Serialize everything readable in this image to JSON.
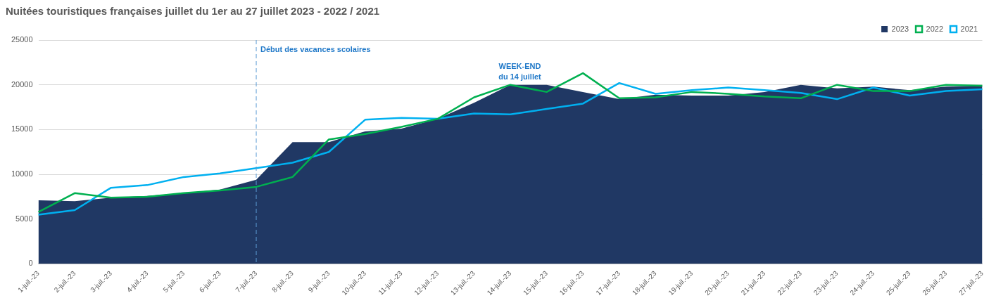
{
  "chart_data": {
    "type": "line",
    "title": "Nuitées touristiques françaises juillet du 1er au 27 juillet 2023 - 2022 / 2021",
    "categories": [
      "1-juil.-23",
      "2-juil.-23",
      "3-juil.-23",
      "4-juil.-23",
      "5-juil.-23",
      "6-juil.-23",
      "7-juil.-23",
      "8-juil.-23",
      "9-juil.-23",
      "10-juil.-23",
      "11-juil.-23",
      "12-juil.-23",
      "13-juil.-23",
      "14-juil.-23",
      "15-juil.-23",
      "16-juil.-23",
      "17-juil.-23",
      "18-juil.-23",
      "19-juil.-23",
      "20-juil.-23",
      "21-juil.-23",
      "22-juil.-23",
      "23-juil.-23",
      "24-juil.-23",
      "25-juil.-23",
      "26-juil.-23",
      "27-juil.-23"
    ],
    "series": [
      {
        "name": "2023",
        "type": "area",
        "color": "#203864",
        "values": [
          7100,
          7000,
          7400,
          7600,
          7900,
          8300,
          9400,
          13600,
          13600,
          14800,
          15100,
          16200,
          18000,
          20000,
          20000,
          19200,
          18400,
          18900,
          18800,
          18800,
          19200,
          20000,
          19600,
          19800,
          19400,
          19800,
          19900
        ]
      },
      {
        "name": "2022",
        "type": "line",
        "color": "#00b050",
        "values": [
          5800,
          7900,
          7400,
          7500,
          7900,
          8200,
          8600,
          9700,
          13900,
          14500,
          15300,
          16200,
          18600,
          20000,
          19200,
          21300,
          18500,
          18600,
          19200,
          19000,
          18700,
          18500,
          20000,
          19300,
          19300,
          20000,
          19900
        ]
      },
      {
        "name": "2021",
        "type": "line",
        "color": "#00b0f0",
        "values": [
          5500,
          6000,
          8500,
          8800,
          9700,
          10100,
          10700,
          11300,
          12500,
          16100,
          16300,
          16200,
          16800,
          16700,
          17300,
          17900,
          20200,
          19000,
          19400,
          19700,
          19400,
          19100,
          18400,
          19700,
          18800,
          19300,
          19500
        ]
      }
    ],
    "ylim": [
      0,
      25000
    ],
    "yticks": [
      0,
      5000,
      10000,
      15000,
      20000,
      25000
    ],
    "grid": "y",
    "legend": "top right",
    "marker": "none",
    "line_style": "solid",
    "ref_lines": [
      {
        "axis": "x",
        "value": "7-juil.-23",
        "label": "Début des vacances scolaires",
        "color": "#5b9bd5",
        "line_style": "dashed"
      }
    ],
    "annotations": [
      "WEEK-END\ndu 14 juillet"
    ]
  }
}
